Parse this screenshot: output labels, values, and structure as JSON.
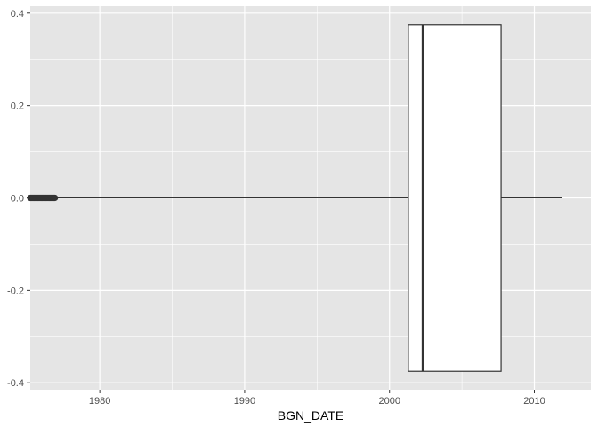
{
  "chart_data": {
    "type": "boxplot",
    "title": "",
    "xlabel": "BGN_DATE",
    "ylabel": "",
    "xlim": [
      1975.2,
      2013.9
    ],
    "ylim": [
      -0.415,
      0.415
    ],
    "x_ticks": [
      1980,
      1990,
      2000,
      2010
    ],
    "x_minor_ticks": [
      1985,
      1995,
      2005
    ],
    "y_ticks": [
      -0.4,
      -0.2,
      0.0,
      0.2,
      0.4
    ],
    "y_tick_labels": [
      "-0.4",
      "-0.2",
      "0.0",
      "0.2",
      "0.4"
    ],
    "y_minor_ticks": [
      -0.3,
      -0.1,
      0.1,
      0.3
    ],
    "grid": true,
    "orientation": "horizontal",
    "box": {
      "whisker_low": 1976.9,
      "q1": 2001.3,
      "median": 2002.3,
      "q3": 2007.7,
      "whisker_high": 2011.9,
      "y_center": 0.0,
      "half_width": 0.375
    },
    "outliers_range": [
      1975.2,
      1976.9
    ],
    "colors": {
      "panel_bg": "#e5e5e5",
      "grid": "#ffffff",
      "box_fill": "#ffffff",
      "stroke": "#333333"
    }
  }
}
